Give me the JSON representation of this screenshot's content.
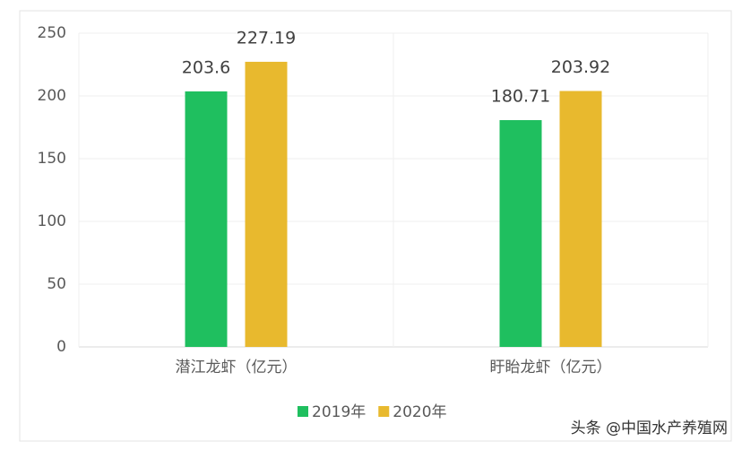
{
  "chart_data": {
    "type": "bar",
    "categories": [
      "潜江龙虾（亿元）",
      "盱眙龙虾（亿元）"
    ],
    "series": [
      {
        "name": "2019年",
        "color": "#1fbf5f",
        "values": [
          203.6,
          180.71
        ]
      },
      {
        "name": "2020年",
        "color": "#e8b92e",
        "values": [
          227.19,
          203.92
        ]
      }
    ],
    "ylim": [
      0,
      250
    ],
    "yticks": [
      0,
      50,
      100,
      150,
      200,
      250
    ],
    "grid": true,
    "legend": "bottom",
    "watermark": "头条 @中国水产养殖网"
  }
}
